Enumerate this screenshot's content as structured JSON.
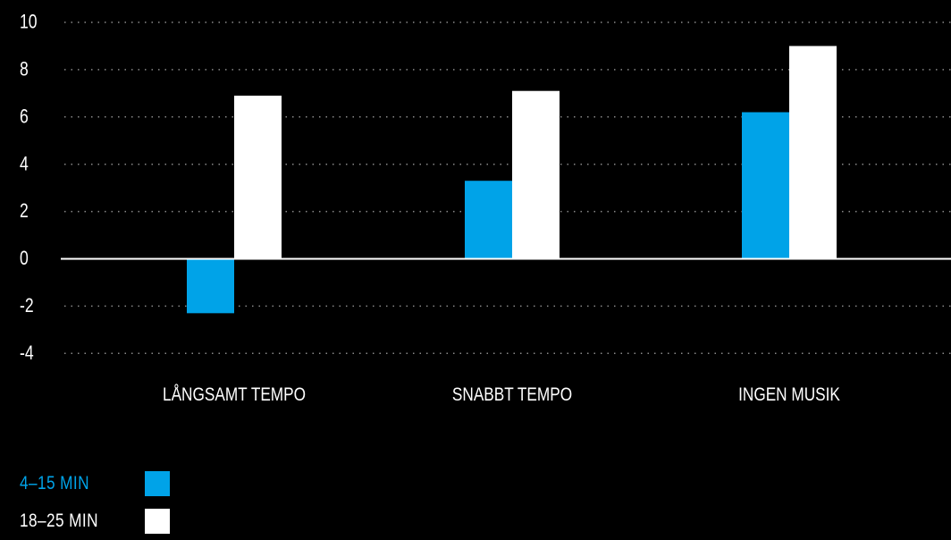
{
  "chart_data": {
    "type": "bar",
    "categories": [
      "LÅNGSAMT TEMPO",
      "SNABBT TEMPO",
      "INGEN MUSIK"
    ],
    "series": [
      {
        "name": "4–15 MIN",
        "values": [
          -2.3,
          3.3,
          6.2
        ],
        "color": "#00a3e8"
      },
      {
        "name": "18–25 MIN",
        "values": [
          6.9,
          7.1,
          9.0
        ],
        "color": "#ffffff"
      }
    ],
    "yticks": [
      10,
      8,
      6,
      4,
      2,
      0,
      -2,
      -4
    ],
    "ylim": [
      -4,
      10
    ],
    "grid": true,
    "grid_style": "dotted",
    "legend_position": "bottom-left",
    "background": "#000000"
  }
}
